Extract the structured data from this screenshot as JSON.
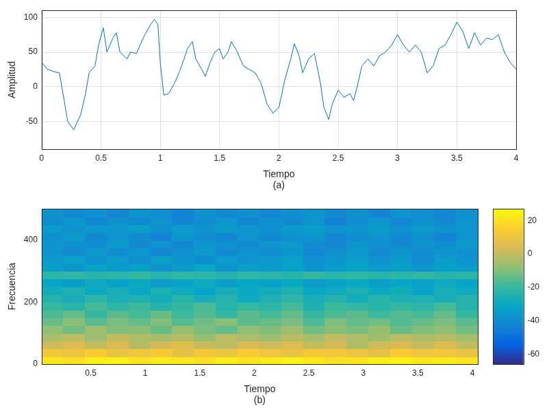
{
  "chart_data": [
    {
      "type": "line",
      "xlabel": "Tiempo",
      "ylabel": "Amplitud",
      "caption": "(a)",
      "color": "#0072bd",
      "grid": true,
      "xlim": [
        0,
        4
      ],
      "xticks": [
        0,
        0.5,
        1,
        1.5,
        2,
        2.5,
        3,
        3.5,
        4
      ],
      "ylim": [
        -90,
        110
      ],
      "yticks": [
        -50,
        0,
        50,
        100
      ],
      "x": [
        0,
        0.05,
        0.1,
        0.15,
        0.22,
        0.27,
        0.33,
        0.37,
        0.4,
        0.45,
        0.48,
        0.52,
        0.55,
        0.6,
        0.63,
        0.66,
        0.72,
        0.75,
        0.8,
        0.83,
        0.87,
        0.92,
        0.95,
        0.98,
        1.0,
        1.03,
        1.07,
        1.12,
        1.17,
        1.2,
        1.23,
        1.27,
        1.3,
        1.35,
        1.38,
        1.42,
        1.46,
        1.5,
        1.53,
        1.57,
        1.6,
        1.65,
        1.7,
        1.75,
        1.8,
        1.85,
        1.9,
        1.95,
        2.0,
        2.05,
        2.1,
        2.13,
        2.17,
        2.2,
        2.25,
        2.3,
        2.35,
        2.38,
        2.42,
        2.45,
        2.5,
        2.55,
        2.6,
        2.63,
        2.66,
        2.7,
        2.75,
        2.8,
        2.85,
        2.9,
        2.95,
        3.0,
        3.05,
        3.1,
        3.15,
        3.2,
        3.25,
        3.3,
        3.35,
        3.4,
        3.45,
        3.5,
        3.55,
        3.6,
        3.65,
        3.7,
        3.75,
        3.8,
        3.85,
        3.9,
        3.95,
        4.0
      ],
      "values": [
        35,
        25,
        22,
        20,
        -50,
        -62,
        -40,
        -10,
        20,
        30,
        60,
        85,
        50,
        70,
        78,
        50,
        40,
        50,
        48,
        60,
        75,
        90,
        97,
        90,
        35,
        -12,
        -10,
        5,
        25,
        40,
        55,
        65,
        40,
        25,
        15,
        35,
        50,
        55,
        40,
        50,
        65,
        50,
        30,
        25,
        20,
        5,
        -25,
        -38,
        -30,
        10,
        40,
        62,
        45,
        20,
        40,
        48,
        5,
        -30,
        -47,
        -25,
        -5,
        -15,
        -10,
        -20,
        0,
        30,
        40,
        30,
        45,
        50,
        60,
        75,
        60,
        50,
        60,
        50,
        20,
        30,
        55,
        60,
        75,
        93,
        80,
        55,
        78,
        60,
        70,
        68,
        75,
        50,
        35,
        25
      ]
    },
    {
      "type": "heatmap",
      "xlabel": "Tiempo",
      "ylabel": "Frecuencia",
      "caption": "(b)",
      "grid": false,
      "xlim": [
        0.05,
        4.05
      ],
      "xticks": [
        0.5,
        1,
        1.5,
        2,
        2.5,
        3,
        3.5,
        4
      ],
      "ylim": [
        0,
        500
      ],
      "yticks": [
        0,
        200,
        400
      ],
      "cells": {
        "x": [
          0.15,
          0.35,
          0.55,
          0.75,
          0.95,
          1.15,
          1.35,
          1.55,
          1.75,
          1.95,
          2.15,
          2.35,
          2.55,
          2.75,
          2.95,
          3.15,
          3.35,
          3.55,
          3.75,
          3.95
        ],
        "y": [
          12.5,
          37.5,
          62.5,
          87.5,
          112.5,
          137.5,
          162.5,
          187.5,
          212.5,
          237.5,
          262.5,
          287.5,
          312.5,
          337.5,
          362.5,
          387.5,
          412.5,
          437.5,
          462.5,
          487.5
        ],
        "z": [
          [
            22,
            20,
            24,
            25,
            21,
            23,
            22,
            20,
            24,
            21,
            23,
            25,
            22,
            20,
            21,
            24,
            25,
            22,
            23,
            21
          ],
          [
            12,
            10,
            14,
            9,
            11,
            13,
            8,
            12,
            10,
            14,
            11,
            9,
            13,
            12,
            10,
            8,
            14,
            11,
            12,
            9
          ],
          [
            2,
            5,
            0,
            4,
            -2,
            3,
            6,
            1,
            -1,
            4,
            2,
            5,
            0,
            3,
            -3,
            2,
            4,
            1,
            5,
            0
          ],
          [
            -4,
            -1,
            -6,
            0,
            -3,
            -5,
            -2,
            -7,
            -1,
            -4,
            -6,
            -2,
            -5,
            0,
            -3,
            -6,
            -1,
            -4,
            -2,
            -5
          ],
          [
            -8,
            -12,
            -6,
            -10,
            -9,
            -13,
            -7,
            -11,
            -14,
            -8,
            -10,
            -6,
            -12,
            -9,
            -11,
            -7,
            -13,
            -10,
            -8,
            -12
          ],
          [
            -13,
            -9,
            -15,
            -11,
            -14,
            -10,
            -16,
            -12,
            -9,
            -15,
            -13,
            -11,
            -17,
            -10,
            -14,
            -12,
            -16,
            -13,
            -11,
            -15
          ],
          [
            -17,
            -14,
            -20,
            -15,
            -18,
            -13,
            -19,
            -16,
            -21,
            -15,
            -18,
            -14,
            -20,
            -17,
            -15,
            -19,
            -16,
            -18,
            -14,
            -20
          ],
          [
            -20,
            -23,
            -18,
            -22,
            -19,
            -24,
            -21,
            -17,
            -23,
            -20,
            -22,
            -18,
            -25,
            -19,
            -21,
            -23,
            -20,
            -22,
            -18,
            -24
          ],
          [
            -24,
            -27,
            -22,
            -26,
            -25,
            -28,
            -23,
            -27,
            -24,
            -29,
            -25,
            -22,
            -27,
            -24,
            -28,
            -23,
            -26,
            -25,
            -27,
            -24
          ],
          [
            -28,
            -25,
            -30,
            -27,
            -31,
            -26,
            -29,
            -32,
            -27,
            -30,
            -28,
            -25,
            -31,
            -29,
            -26,
            -30,
            -28,
            -32,
            -27,
            -29
          ],
          [
            -31,
            -34,
            -29,
            -33,
            -30,
            -35,
            -32,
            -29,
            -34,
            -31,
            -33,
            -30,
            -35,
            -32,
            -30,
            -34,
            -31,
            -33,
            -29,
            -32
          ],
          [
            -22,
            -21,
            -23,
            -22,
            -20,
            -23,
            -21,
            -22,
            -24,
            -21,
            -22,
            -23,
            -20,
            -22,
            -21,
            -23,
            -22,
            -21,
            -23,
            -22
          ],
          [
            -34,
            -37,
            -32,
            -36,
            -33,
            -38,
            -35,
            -31,
            -37,
            -34,
            -36,
            -33,
            -38,
            -35,
            -32,
            -36,
            -34,
            -37,
            -33,
            -35
          ],
          [
            -36,
            -33,
            -38,
            -35,
            -39,
            -34,
            -37,
            -40,
            -35,
            -38,
            -36,
            -33,
            -39,
            -37,
            -34,
            -38,
            -36,
            -40,
            -35,
            -37
          ],
          [
            -38,
            -41,
            -36,
            -40,
            -37,
            -42,
            -39,
            -36,
            -41,
            -38,
            -40,
            -37,
            -42,
            -39,
            -36,
            -41,
            -38,
            -40,
            -37,
            -39
          ],
          [
            -37,
            -39,
            -40,
            -36,
            -41,
            -38,
            -42,
            -37,
            -39,
            -41,
            -38,
            -36,
            -40,
            -42,
            -37,
            -39,
            -41,
            -38,
            -40,
            -36
          ],
          [
            -39,
            -36,
            -41,
            -38,
            -40,
            -43,
            -37,
            -40,
            -42,
            -38,
            -41,
            -39,
            -37,
            -42,
            -40,
            -38,
            -41,
            -39,
            -43,
            -38
          ],
          [
            -35,
            -38,
            -36,
            -37,
            -34,
            -39,
            -36,
            -38,
            -35,
            -37,
            -39,
            -36,
            -34,
            -38,
            -37,
            -35,
            -39,
            -36,
            -38,
            -37
          ],
          [
            -40,
            -37,
            -42,
            -39,
            -41,
            -38,
            -43,
            -40,
            -37,
            -42,
            -39,
            -41,
            -38,
            -44,
            -40,
            -37,
            -42,
            -39,
            -41,
            -38
          ],
          [
            -38,
            -41,
            -39,
            -42,
            -37,
            -40,
            -43,
            -38,
            -41,
            -39,
            -42,
            -40,
            -37,
            -41,
            -39,
            -43,
            -38,
            -40,
            -42,
            -39
          ]
        ]
      },
      "colorbar": {
        "range": [
          -66,
          27
        ],
        "ticks": [
          -60,
          -40,
          -20,
          0,
          20
        ]
      }
    }
  ]
}
